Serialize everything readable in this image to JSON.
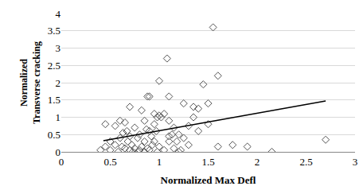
{
  "chart_data": {
    "type": "scatter",
    "x_label": "Normalized Max Defl",
    "y_label": "Normalized Transverse cracking",
    "xlim": [
      0,
      3
    ],
    "xticks": [
      0,
      0.5,
      1,
      1.5,
      2,
      2.5,
      3
    ],
    "ylim": [
      0,
      4
    ],
    "yticks": [
      0,
      0.5,
      1,
      1.5,
      2,
      2.5,
      3,
      3.5,
      4
    ],
    "grid": true,
    "series": [
      {
        "type": "scatter",
        "marker": "diamond-open",
        "color": "#555555",
        "x": [
          1.55,
          1.08,
          1.6,
          1.0,
          1.45,
          0.88,
          0.9,
          1.1,
          1.35,
          0.7,
          1.5,
          1.4,
          0.82,
          0.95,
          0.98,
          1.0,
          1.02,
          1.05,
          0.45,
          0.6,
          0.55,
          0.65,
          0.75,
          0.8,
          0.85,
          0.9,
          0.95,
          1.1,
          1.15,
          1.2,
          1.3,
          1.4,
          1.5,
          0.5,
          0.55,
          0.6,
          0.62,
          0.65,
          0.68,
          0.7,
          0.72,
          0.75,
          0.78,
          0.8,
          0.85,
          0.88,
          0.9,
          0.92,
          0.95,
          0.98,
          1.0,
          1.05,
          1.1,
          1.15,
          1.2,
          1.25,
          1.3,
          0.4,
          0.45,
          0.5,
          0.58,
          0.63,
          0.67,
          0.7,
          0.73,
          0.82,
          0.87,
          0.93,
          1.13,
          1.18,
          1.6,
          1.75,
          1.9,
          2.15,
          2.7,
          1.35,
          1.25,
          1.1,
          0.97,
          0.78,
          0.85,
          1.22
        ],
        "values": [
          3.6,
          2.7,
          2.2,
          2.05,
          1.95,
          1.6,
          1.6,
          1.6,
          1.3,
          1.3,
          1.4,
          1.25,
          1.2,
          1.1,
          1.0,
          1.05,
          1.0,
          1.1,
          0.8,
          0.9,
          0.75,
          0.85,
          0.7,
          0.5,
          0.9,
          0.6,
          0.8,
          0.9,
          0.7,
          0.5,
          0.75,
          0.6,
          0.8,
          0.3,
          0.2,
          0.4,
          0.15,
          0.1,
          0.3,
          0.05,
          0.2,
          0.1,
          0.4,
          0.05,
          0.3,
          0.1,
          0.05,
          0.45,
          0.3,
          0.0,
          0.15,
          0.05,
          0.3,
          0.1,
          0.0,
          0.4,
          0.2,
          0.05,
          0.15,
          0.05,
          0.0,
          0.55,
          0.6,
          0.45,
          0.0,
          0.15,
          0.65,
          0.2,
          0.5,
          0.3,
          0.15,
          0.2,
          0.15,
          0.0,
          0.35,
          1.0,
          1.4,
          0.45,
          0.6,
          0.0,
          0.0,
          0.05
        ]
      },
      {
        "type": "line",
        "line_style": "solid",
        "color": "#000000",
        "x": [
          0.43,
          2.7
        ],
        "values": [
          0.32,
          1.47
        ]
      }
    ]
  }
}
